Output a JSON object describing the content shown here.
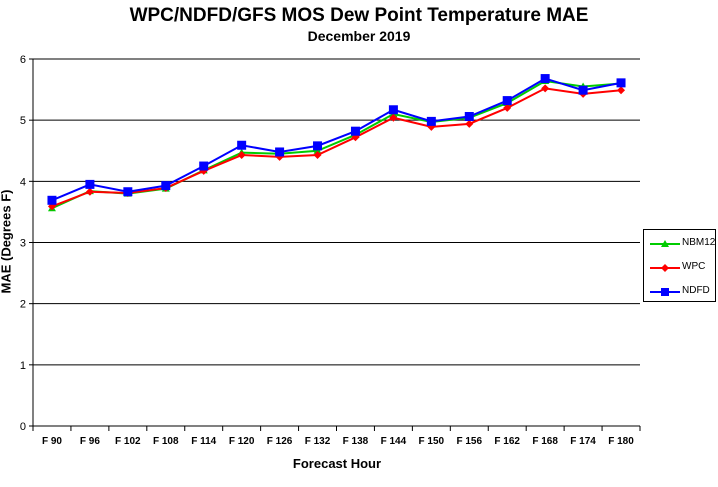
{
  "chart_data": {
    "type": "line",
    "title": "WPC/NDFD/GFS  MOS Dew Point Temperature MAE",
    "subtitle": "December 2019",
    "xlabel": "Forecast Hour",
    "ylabel": "MAE (Degrees F)",
    "ylim": [
      0,
      6
    ],
    "yticks": [
      0,
      1,
      2,
      3,
      4,
      5,
      6
    ],
    "grid": true,
    "legend_position": "right",
    "categories": [
      "F 90",
      "F 96",
      "F 102",
      "F 108",
      "F 114",
      "F 120",
      "F 126",
      "F 132",
      "F 138",
      "F 144",
      "F 150",
      "F 156",
      "F 162",
      "F 168",
      "F 174",
      "F 180"
    ],
    "series": [
      {
        "name": "NBM12",
        "color": "#00cc00",
        "marker": "triangle",
        "values": [
          3.56,
          3.84,
          3.8,
          3.88,
          4.18,
          4.47,
          4.45,
          4.5,
          4.76,
          5.1,
          4.97,
          5.04,
          5.28,
          5.64,
          5.55,
          5.6
        ]
      },
      {
        "name": "WPC",
        "color": "#ff0000",
        "marker": "diamond",
        "values": [
          3.59,
          3.83,
          3.81,
          3.89,
          4.17,
          4.43,
          4.4,
          4.43,
          4.72,
          5.04,
          4.89,
          4.94,
          5.2,
          5.52,
          5.43,
          5.49
        ]
      },
      {
        "name": "NDFD",
        "color": "#0000ff",
        "marker": "square",
        "values": [
          3.69,
          3.95,
          3.83,
          3.93,
          4.25,
          4.59,
          4.48,
          4.58,
          4.82,
          5.17,
          4.98,
          5.06,
          5.32,
          5.68,
          5.49,
          5.61
        ]
      }
    ]
  }
}
